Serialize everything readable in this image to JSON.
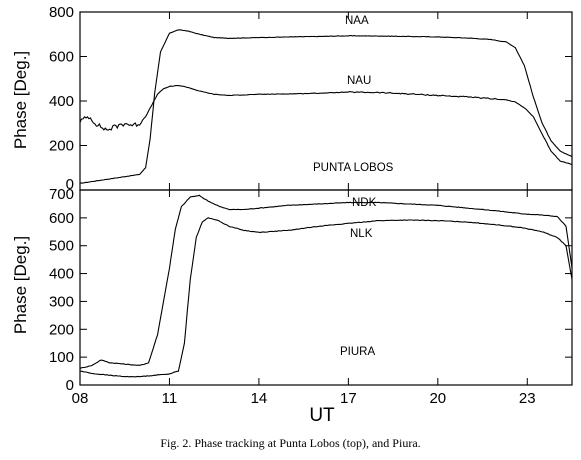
{
  "chart_data": [
    {
      "type": "line",
      "panel": "top",
      "ylabel": "Phase [Deg.]",
      "ylim": [
        0,
        800
      ],
      "yticks": [
        0,
        200,
        400,
        600,
        800
      ],
      "xlim": [
        8,
        24.5
      ],
      "annotation": "PUNTA LOBOS",
      "series": [
        {
          "name": "NAA",
          "x": [
            8.0,
            8.5,
            9.0,
            9.5,
            10.0,
            10.2,
            10.35,
            10.5,
            10.7,
            11.0,
            11.3,
            11.6,
            12.0,
            12.5,
            13.0,
            14.0,
            15.0,
            16.0,
            17.0,
            18.0,
            19.0,
            20.0,
            21.0,
            21.8,
            22.3,
            22.6,
            22.9,
            23.2,
            23.5,
            23.8,
            24.1,
            24.5
          ],
          "y": [
            30,
            40,
            50,
            60,
            70,
            100,
            230,
            430,
            620,
            705,
            720,
            715,
            700,
            685,
            682,
            685,
            688,
            690,
            693,
            692,
            690,
            688,
            683,
            676,
            665,
            640,
            560,
            420,
            300,
            220,
            175,
            150
          ]
        },
        {
          "name": "NAU",
          "x": [
            8.0,
            8.3,
            8.6,
            8.9,
            9.2,
            9.5,
            9.8,
            10.0,
            10.2,
            10.4,
            10.6,
            10.8,
            11.0,
            11.3,
            11.6,
            12.0,
            12.5,
            13.0,
            14.0,
            15.0,
            16.0,
            17.0,
            18.0,
            19.0,
            20.0,
            21.0,
            21.8,
            22.3,
            22.6,
            22.9,
            23.2,
            23.5,
            23.8,
            24.1,
            24.5
          ],
          "y": [
            310,
            330,
            290,
            270,
            285,
            300,
            290,
            300,
            330,
            380,
            430,
            455,
            465,
            470,
            462,
            445,
            430,
            425,
            430,
            432,
            435,
            440,
            438,
            432,
            425,
            418,
            410,
            405,
            395,
            370,
            330,
            250,
            175,
            130,
            115
          ]
        }
      ]
    },
    {
      "type": "line",
      "panel": "bottom",
      "ylabel": "Phase [Deg.]",
      "xlabel": "UT",
      "ylim": [
        0,
        700
      ],
      "yticks": [
        0,
        100,
        200,
        300,
        400,
        500,
        600,
        700
      ],
      "xlim": [
        8,
        24.5
      ],
      "xticks": [
        "08",
        "11",
        "14",
        "17",
        "20",
        "23"
      ],
      "annotation": "PIURA",
      "series": [
        {
          "name": "NDK",
          "x": [
            8.0,
            8.4,
            8.7,
            9.0,
            9.5,
            10.0,
            10.3,
            10.6,
            10.8,
            11.0,
            11.2,
            11.4,
            11.7,
            12.0,
            12.3,
            12.7,
            13.0,
            13.5,
            14.0,
            15.0,
            16.0,
            17.0,
            18.0,
            19.0,
            20.0,
            21.0,
            22.0,
            22.8,
            23.5,
            24.0,
            24.3,
            24.5
          ],
          "y": [
            60,
            70,
            90,
            80,
            75,
            70,
            80,
            180,
            300,
            420,
            560,
            640,
            675,
            680,
            660,
            640,
            630,
            630,
            635,
            645,
            650,
            655,
            655,
            650,
            645,
            635,
            625,
            615,
            610,
            605,
            570,
            420
          ]
        },
        {
          "name": "NLK",
          "x": [
            8.0,
            8.5,
            9.0,
            9.5,
            10.0,
            10.5,
            11.0,
            11.3,
            11.5,
            11.7,
            11.9,
            12.1,
            12.3,
            12.6,
            13.0,
            13.5,
            14.0,
            15.0,
            16.0,
            17.0,
            18.0,
            19.0,
            20.0,
            21.0,
            22.0,
            22.8,
            23.5,
            24.0,
            24.3,
            24.5
          ],
          "y": [
            50,
            40,
            35,
            30,
            30,
            35,
            40,
            50,
            150,
            380,
            530,
            585,
            600,
            592,
            570,
            555,
            548,
            555,
            570,
            580,
            590,
            592,
            590,
            585,
            575,
            565,
            550,
            530,
            500,
            380
          ]
        }
      ]
    }
  ],
  "caption": "Fig. 2. Phase tracking at Punta Lobos  (top), and  Piura."
}
